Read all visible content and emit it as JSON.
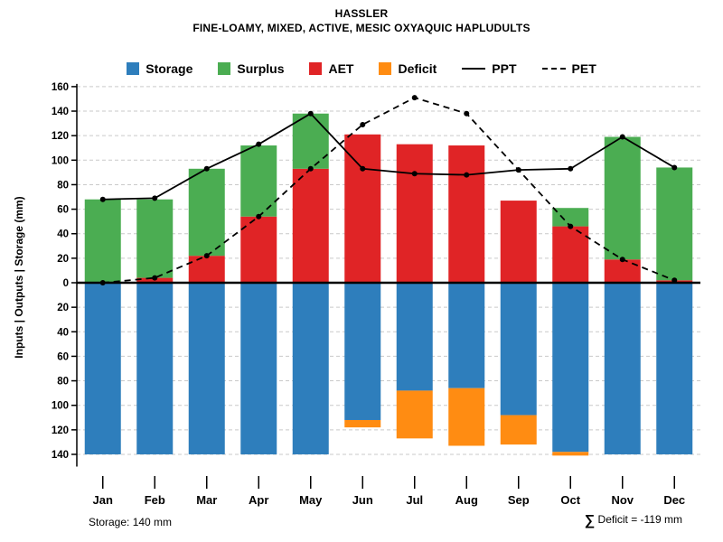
{
  "header": {
    "title": "HASSLER",
    "subtitle": "FINE-LOAMY, MIXED, ACTIVE, MESIC OXYAQUIC HAPLUDULTS"
  },
  "axes": {
    "ylabel": "Inputs | Outputs | Storage  (mm)"
  },
  "footer": {
    "storage_note": "Storage: 140 mm",
    "sum_symbol": "∑",
    "deficit_note": " Deficit = -119 mm"
  },
  "chart_data": {
    "type": "bar",
    "title": "HASSLER",
    "subtitle": "FINE-LOAMY, MIXED, ACTIVE, MESIC OXYAQUIC HAPLUDULTS",
    "ylabel": "Inputs | Outputs | Storage  (mm)",
    "categories": [
      "Jan",
      "Feb",
      "Mar",
      "Apr",
      "May",
      "Jun",
      "Jul",
      "Aug",
      "Sep",
      "Oct",
      "Nov",
      "Dec"
    ],
    "y_top_max": 160,
    "y_bottom_max": 150,
    "ytick_step": 20,
    "grid": true,
    "legend_position": "top",
    "series": [
      {
        "name": "Storage",
        "kind": "bar",
        "direction": "down",
        "stack": "base",
        "color": "#2e7ebc",
        "values": [
          140,
          140,
          140,
          140,
          140,
          112,
          88,
          86,
          108,
          138,
          140,
          140
        ]
      },
      {
        "name": "Surplus",
        "kind": "bar",
        "direction": "up",
        "stack": "top",
        "color": "#4bad52",
        "values": [
          68,
          64,
          71,
          58,
          45,
          0,
          0,
          0,
          0,
          15,
          100,
          92
        ]
      },
      {
        "name": "AET",
        "kind": "bar",
        "direction": "up",
        "stack": "base",
        "color": "#e02426",
        "values": [
          0,
          4,
          22,
          54,
          93,
          121,
          113,
          112,
          67,
          46,
          19,
          2
        ]
      },
      {
        "name": "Deficit",
        "kind": "bar",
        "direction": "down",
        "stack": "top",
        "color": "#ff8c12",
        "values": [
          0,
          0,
          0,
          0,
          0,
          6,
          39,
          47,
          24,
          3,
          0,
          0
        ]
      },
      {
        "name": "PPT",
        "kind": "line",
        "style": "solid",
        "color": "#000000",
        "values": [
          68,
          69,
          93,
          113,
          138,
          93,
          89,
          88,
          92,
          93,
          119,
          94
        ]
      },
      {
        "name": "PET",
        "kind": "line",
        "style": "dashed",
        "color": "#000000",
        "values": [
          0,
          4,
          22,
          54,
          93,
          129,
          151,
          138,
          92,
          46,
          19,
          2
        ]
      }
    ],
    "annotations": {
      "storage_capacity_mm": 140,
      "total_deficit_mm": -119
    }
  }
}
